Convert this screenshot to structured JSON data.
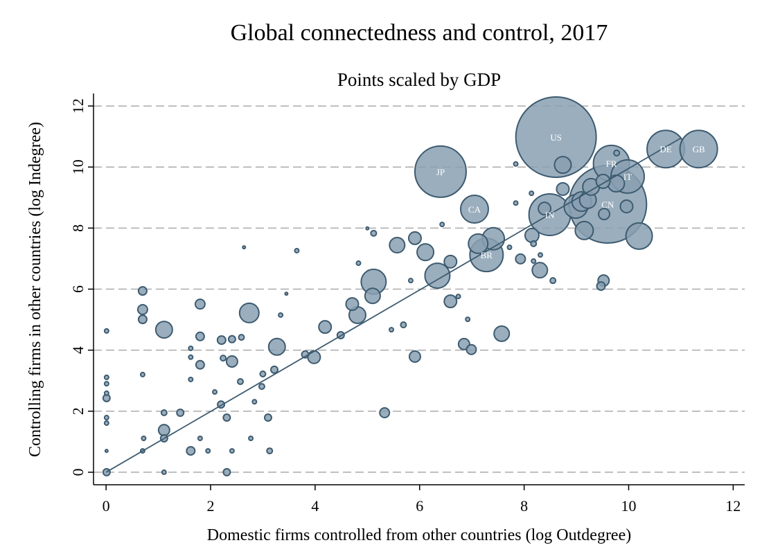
{
  "chart_data": {
    "type": "scatter",
    "title": "Global connectedness and control, 2017",
    "subtitle": "Points scaled by GDP",
    "x_label": "Domestic firms controlled from other countries (log Outdegree)",
    "y_label": "Controlling firms in other countries (log Indegree)",
    "xlim": [
      -0.24,
      12.22
    ],
    "ylim": [
      -0.41,
      12.41
    ],
    "xticks": [
      0,
      2,
      4,
      6,
      8,
      10,
      12
    ],
    "yticks": [
      0,
      2,
      4,
      6,
      8,
      10,
      12
    ],
    "grid": true,
    "color": "#8aa0b1",
    "edgecolor": "#3d5b70",
    "x": [
      8.61,
      6.4,
      9.6,
      10.71,
      11.34,
      9.67,
      9.98,
      7.05,
      8.49,
      7.28,
      8.74,
      10.2,
      6.34,
      5.12,
      2.74,
      1.11,
      3.27,
      6.11,
      5.57,
      5.91,
      7.12,
      7.41,
      7.57,
      8.15,
      8.3,
      9.15,
      9.1,
      8.99,
      9.22,
      8.74,
      9.28,
      9.51,
      9.76,
      9.96,
      9.53,
      8.39,
      4.81,
      4.71,
      4.19,
      3.98,
      5.1,
      6.59,
      6.59,
      6.85,
      6.99,
      5.91,
      5.33,
      7.93,
      9.52,
      9.47,
      1.11,
      2.41,
      1.8,
      1.8,
      1.8,
      0.7,
      0.7,
      0.7,
      2.21,
      2.41,
      2.59,
      3.81,
      4.49,
      5.69,
      0.01,
      0.01,
      2.31,
      1.11,
      1.62,
      2.2,
      2.31,
      3.1,
      1.42,
      1.11,
      1.11,
      3.22,
      3.0,
      2.98,
      2.57,
      3.13,
      2.41,
      2.77,
      1.95,
      1.8,
      0.72,
      0.7,
      0.01,
      0.01,
      0.01,
      0.01,
      0.01,
      0.01,
      0.7,
      1.62,
      1.62,
      1.62,
      8.18,
      8.31,
      8.18,
      7.84,
      9.77,
      6.43,
      5.0,
      5.12,
      4.83,
      5.83,
      6.92,
      6.74,
      5.46,
      8.14,
      7.84,
      7.72,
      8.55,
      2.64,
      3.65,
      3.45,
      3.34,
      2.08,
      2.24,
      2.84,
      0.01
    ],
    "y": [
      10.98,
      9.85,
      8.78,
      10.59,
      10.59,
      10.12,
      9.69,
      8.62,
      8.44,
      7.12,
      10.07,
      7.74,
      6.44,
      6.24,
      5.22,
      4.67,
      4.11,
      7.21,
      7.44,
      7.67,
      7.49,
      7.65,
      4.54,
      7.76,
      6.62,
      7.92,
      8.87,
      8.71,
      8.92,
      9.28,
      9.35,
      9.53,
      9.46,
      8.71,
      8.46,
      8.64,
      5.15,
      5.51,
      4.76,
      3.77,
      5.78,
      6.9,
      5.6,
      4.2,
      4.02,
      3.79,
      1.95,
      6.99,
      6.28,
      6.1,
      1.38,
      3.63,
      5.51,
      4.45,
      3.52,
      5.94,
      5.33,
      5.01,
      4.33,
      4.36,
      4.42,
      3.86,
      4.49,
      4.83,
      2.43,
      0,
      0,
      0,
      0.7,
      2.22,
      1.79,
      1.79,
      1.95,
      1.95,
      1.11,
      3.36,
      3.22,
      2.81,
      2.97,
      0.7,
      0.7,
      1.11,
      0.7,
      1.11,
      1.11,
      0.7,
      3.11,
      2.9,
      2.59,
      1.79,
      1.61,
      4.63,
      3.2,
      3.77,
      3.04,
      4.06,
      7.49,
      7.12,
      6.92,
      10.1,
      10.46,
      8.12,
      7.99,
      7.83,
      6.85,
      6.28,
      5.01,
      5.76,
      4.67,
      9.14,
      8.82,
      7.37,
      6.28,
      7.37,
      7.26,
      5.85,
      5.15,
      2.63,
      3.74,
      2.31,
      0.7
    ],
    "size": [
      19500,
      7936,
      18180,
      4230,
      4230,
      3920,
      3340,
      2320,
      5220,
      3340,
      835,
      2093,
      1878,
      1878,
      1136,
      835,
      835,
      835,
      701,
      470,
      1136,
      1484,
      701,
      580,
      701,
      980,
      1136,
      1675,
      835,
      470,
      835,
      580,
      835,
      470,
      371,
      470,
      835,
      470,
      470,
      470,
      701,
      470,
      470,
      371,
      284,
      371,
      284,
      284,
      371,
      209,
      371,
      371,
      284,
      209,
      209,
      209,
      284,
      209,
      209,
      145,
      93,
      145,
      145,
      93,
      145,
      145,
      145,
      52,
      209,
      145,
      145,
      145,
      145,
      93,
      145,
      145,
      93,
      93,
      93,
      93,
      52,
      52,
      52,
      52,
      52,
      52,
      52,
      52,
      52,
      52,
      52,
      52,
      52,
      52,
      52,
      52,
      93,
      52,
      52,
      52,
      93,
      52,
      23,
      93,
      52,
      52,
      52,
      52,
      52,
      52,
      52,
      52,
      93,
      23,
      52,
      23,
      52,
      52,
      93,
      52,
      23
    ],
    "labels": [
      "US",
      "JP",
      "CN",
      "DE",
      "GB",
      "FR",
      "IT",
      "CA",
      "IN",
      "BR",
      null,
      null,
      null,
      null,
      null,
      null,
      null,
      null,
      null,
      null,
      null,
      null,
      null,
      null,
      null,
      null,
      null,
      null,
      null,
      null,
      null,
      null,
      null,
      null,
      null,
      null,
      null,
      null,
      null,
      null,
      null,
      null,
      null,
      null,
      null,
      null,
      null,
      null,
      null,
      null,
      null,
      null,
      null,
      null,
      null,
      null,
      null,
      null,
      null,
      null,
      null,
      null,
      null,
      null,
      null,
      null,
      null,
      null,
      null,
      null,
      null,
      null,
      null,
      null,
      null,
      null,
      null,
      null,
      null,
      null,
      null,
      null,
      null,
      null,
      null,
      null,
      null,
      null,
      null,
      null,
      null,
      null,
      null,
      null,
      null,
      null,
      null,
      null,
      null,
      null,
      null,
      null,
      null,
      null,
      null,
      null,
      null,
      null,
      null,
      null,
      null,
      null,
      null,
      null,
      null,
      null,
      null,
      null,
      null,
      null,
      null
    ],
    "fit_line": {
      "x": [
        0,
        11
      ],
      "y": [
        0,
        10.95
      ]
    }
  }
}
